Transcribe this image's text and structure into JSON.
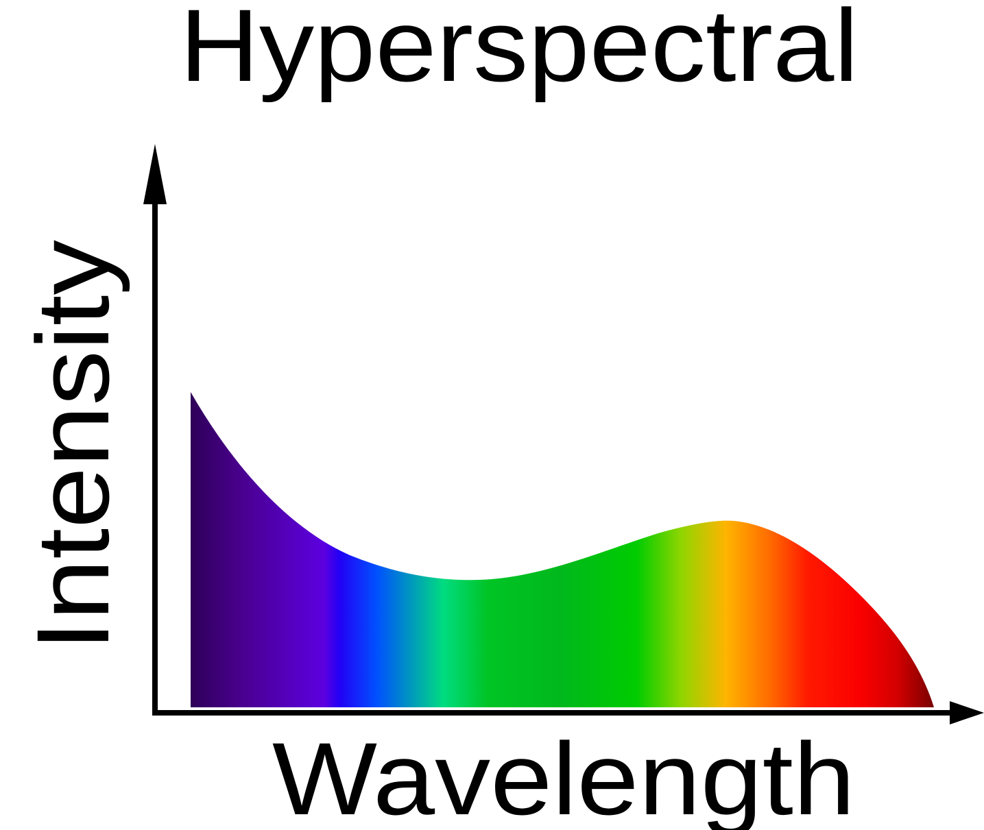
{
  "title": "Hyperspectral",
  "xlabel": "Wavelength",
  "ylabel": "Intensity",
  "colors": {
    "axis": "#000000",
    "text": "#000000",
    "background": "#ffffff"
  },
  "spectrum": {
    "fill": "continuous rainbow gradient (violet to red)"
  }
}
